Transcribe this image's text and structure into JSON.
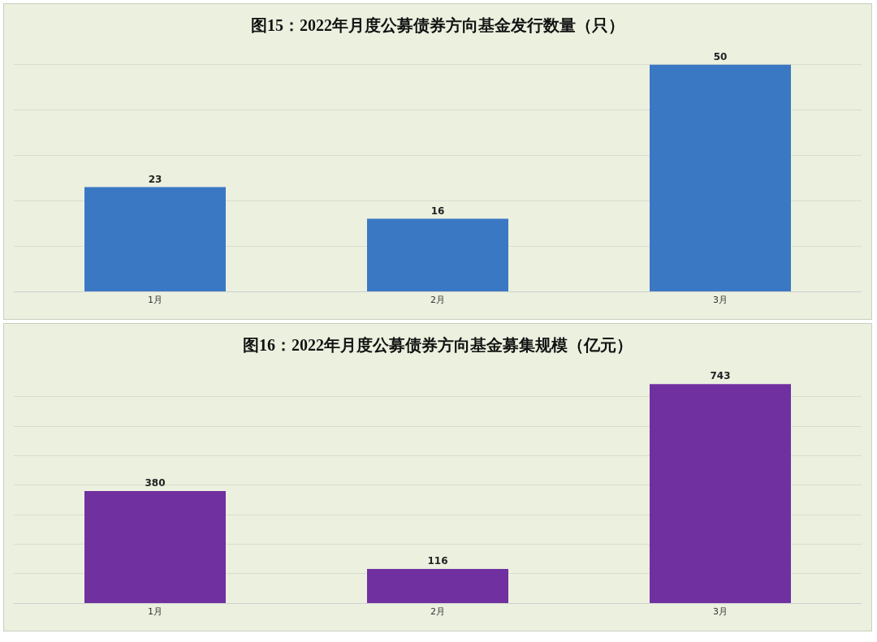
{
  "chart_data": [
    {
      "type": "bar",
      "title": "图15：2022年月度公募债券方向基金发行数量（只）",
      "categories": [
        "1月",
        "2月",
        "3月"
      ],
      "values": [
        23,
        16,
        50
      ],
      "color": "#3b78c4",
      "grid": "y",
      "data_labels": true,
      "tick_labels": "x",
      "legend": false
    },
    {
      "type": "bar",
      "title": "图16：2022年月度公募债券方向基金募集规模（亿元）",
      "categories": [
        "1月",
        "2月",
        "3月"
      ],
      "values": [
        380,
        116,
        743
      ],
      "color": "#7030a0",
      "grid": "y",
      "data_labels": true,
      "tick_labels": "x",
      "legend": false
    }
  ]
}
